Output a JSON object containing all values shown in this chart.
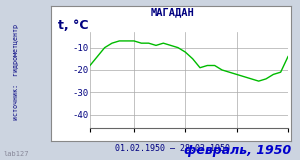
{
  "title": "МАГАДАН",
  "ylabel": "t, °C",
  "xlabel_range": "01.02.1950 – 28.02.1950",
  "footer": "февраль, 1950",
  "watermark": "lab127",
  "source_label": "источник:  гидрометцентр",
  "bg_color": "#ccd4e0",
  "plot_bg_color": "#ffffff",
  "line_color": "#00bb00",
  "title_color": "#000080",
  "label_color": "#000080",
  "footer_color": "#0000cc",
  "source_color": "#000080",
  "yticks": [
    -40,
    -30,
    -20,
    -10
  ],
  "ylim": [
    -46,
    -3
  ],
  "days": 28,
  "temperatures": [
    -18,
    -14,
    -10,
    -8,
    -7,
    -7,
    -7,
    -8,
    -8,
    -9,
    -8,
    -9,
    -10,
    -12,
    -15,
    -19,
    -18,
    -18,
    -20,
    -21,
    -22,
    -23,
    -24,
    -25,
    -24,
    -22,
    -21,
    -14
  ]
}
